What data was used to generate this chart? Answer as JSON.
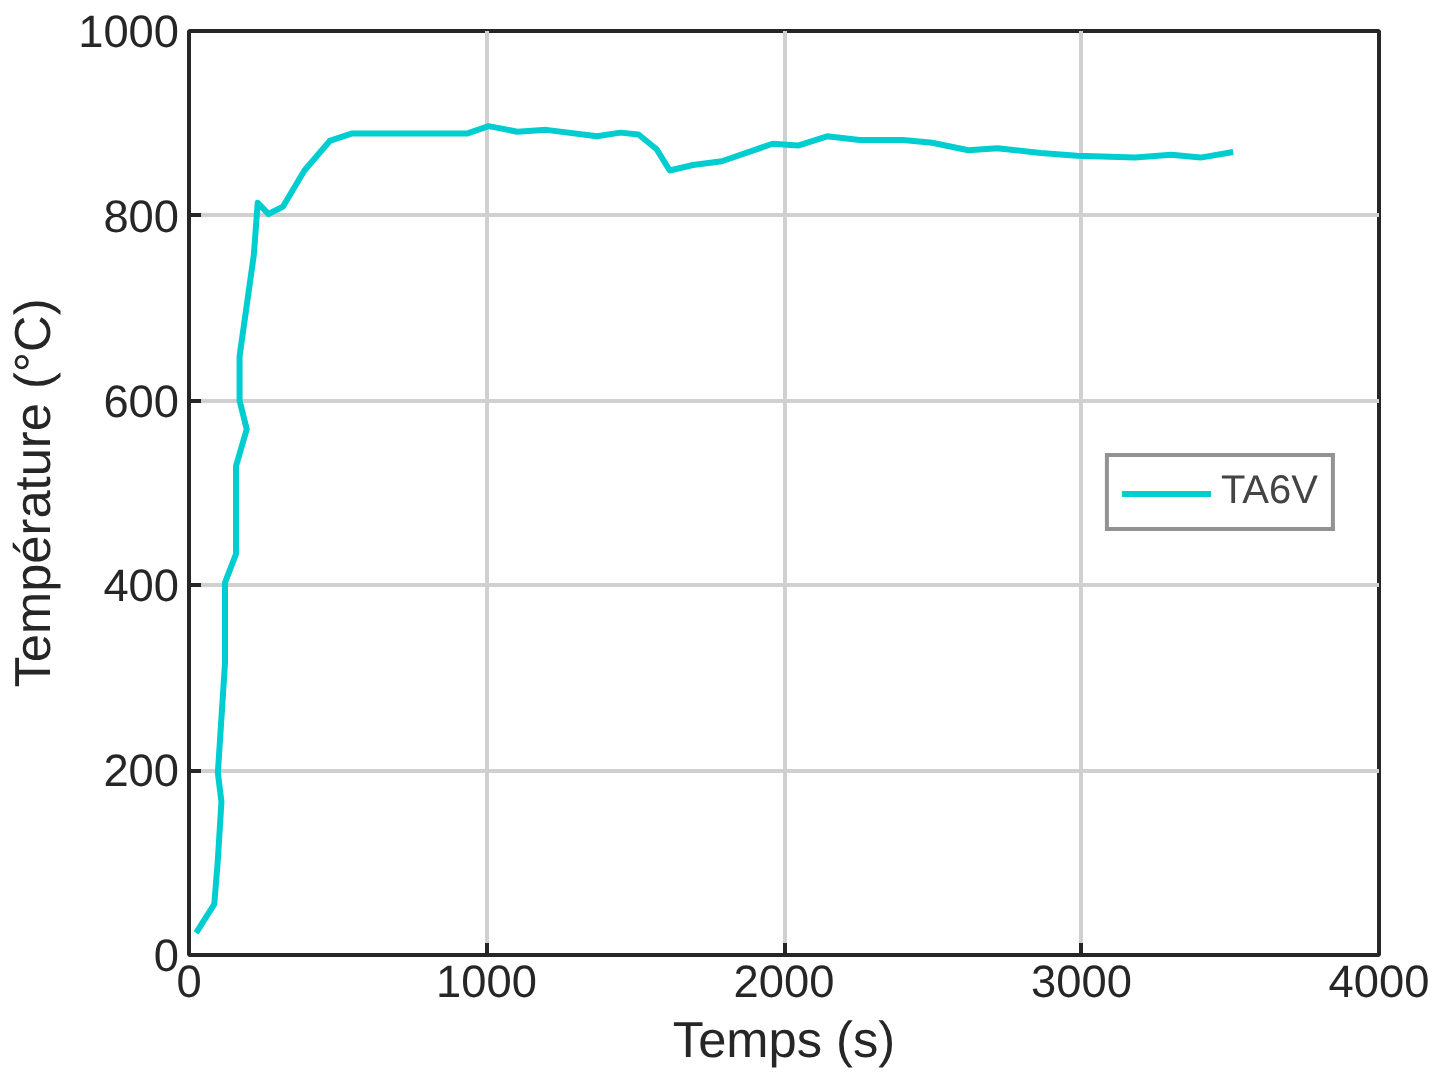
{
  "chart_data": {
    "type": "line",
    "xlabel": "Temps (s)",
    "ylabel": "Température (°C)",
    "xlim": [
      0,
      4000
    ],
    "ylim": [
      0,
      1000
    ],
    "xticks": [
      0,
      1000,
      2000,
      3000,
      4000
    ],
    "yticks": [
      0,
      200,
      400,
      600,
      800,
      1000
    ],
    "grid": true,
    "legend": "right",
    "line_style": "solid",
    "series": [
      {
        "name": "TA6V",
        "color": "#00cdd0",
        "x": [
          24,
          85,
          97,
          109,
          97,
          121,
          121,
          158,
          158,
          194,
          170,
          170,
          218,
          231,
          267,
          316,
          388,
          473,
          546,
          692,
          934,
          1007,
          1104,
          1201,
          1371,
          1450,
          1511,
          1572,
          1616,
          1694,
          1791,
          1962,
          2047,
          2145,
          2254,
          2400,
          2498,
          2620,
          2717,
          2863,
          2985,
          3180,
          3302,
          3400,
          3510
        ],
        "values": [
          24,
          55,
          103,
          166,
          197,
          316,
          403,
          434,
          529,
          569,
          600,
          648,
          758,
          814,
          802,
          810,
          849,
          881,
          889,
          889,
          889,
          897,
          891,
          893,
          886,
          890,
          888,
          872,
          849,
          855,
          859,
          878,
          876,
          886,
          882,
          882,
          879,
          871,
          873,
          868,
          865,
          863,
          866,
          863,
          869
        ]
      }
    ]
  }
}
